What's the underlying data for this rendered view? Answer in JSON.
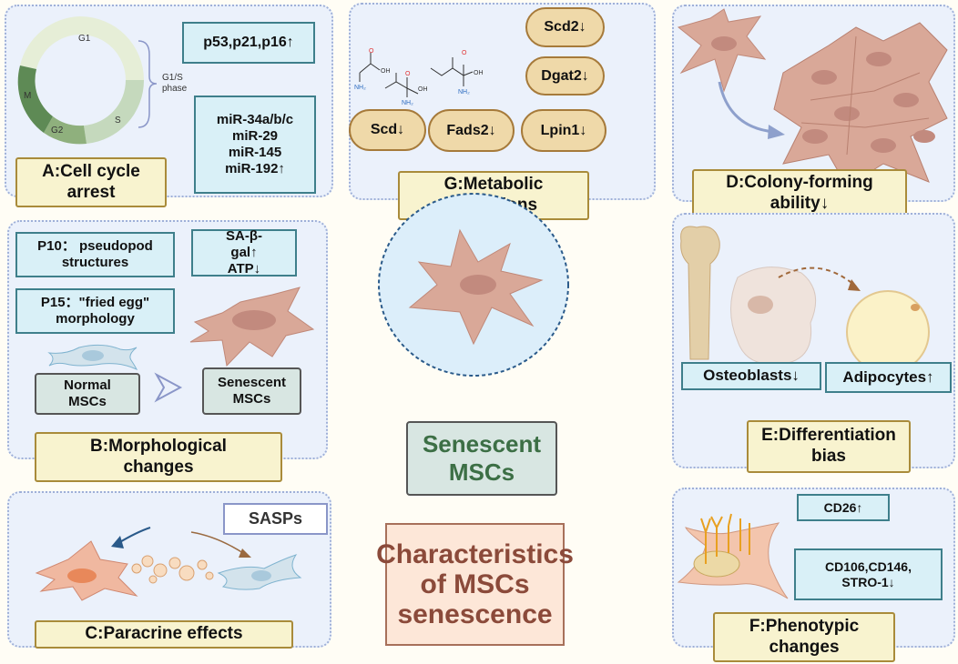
{
  "panel_a": {
    "label": "A:Cell cycle arrest",
    "phases": [
      "G1",
      "S",
      "G2",
      "M"
    ],
    "brace_label": "G1/S phase",
    "markers": "p53,p21,p16↑",
    "mirnas": [
      "miR-34a/b/c",
      "miR-29",
      "miR-145",
      "miR-192↑"
    ]
  },
  "panel_g": {
    "label": "G:Metabolic alterations",
    "genes": [
      "Scd2↓",
      "Dgat2↓",
      "Scd↓",
      "Fads2↓",
      "Lpin1↓"
    ],
    "chem": {
      "oh": "OH",
      "o": "O",
      "nh2": "NH₂"
    }
  },
  "panel_d": {
    "label": "D:Colony-forming ability↓"
  },
  "panel_b": {
    "label": "B:Morphological changes",
    "p10": "P10： pseudopod structures",
    "p15": "P15：\"fried egg\" morphology",
    "markers": "SA-β-gal↑ ATP↓",
    "normal": "Normal MSCs",
    "senescent": "Senescent MSCs"
  },
  "panel_e": {
    "label": "E:Differentiation bias",
    "osteo": "Osteoblasts↓",
    "adipo": "Adipocytes↑"
  },
  "panel_c": {
    "label": "C:Paracrine effects",
    "sasps": "SASPs"
  },
  "panel_f": {
    "label": "F:Phenotypic changes",
    "cd26": "CD26↑",
    "cd106": "CD106,CD146, STRO-1↓"
  },
  "center": {
    "title": "Senescent MSCs",
    "main": "Characteristics of MSCs senescence"
  },
  "colors": {
    "panel_bg": "#ebf1fb",
    "cell": "#d9a898",
    "label_bg": "#f8f3cf",
    "title_green": "#3c6f45",
    "title_brown": "#8b4a3a"
  }
}
